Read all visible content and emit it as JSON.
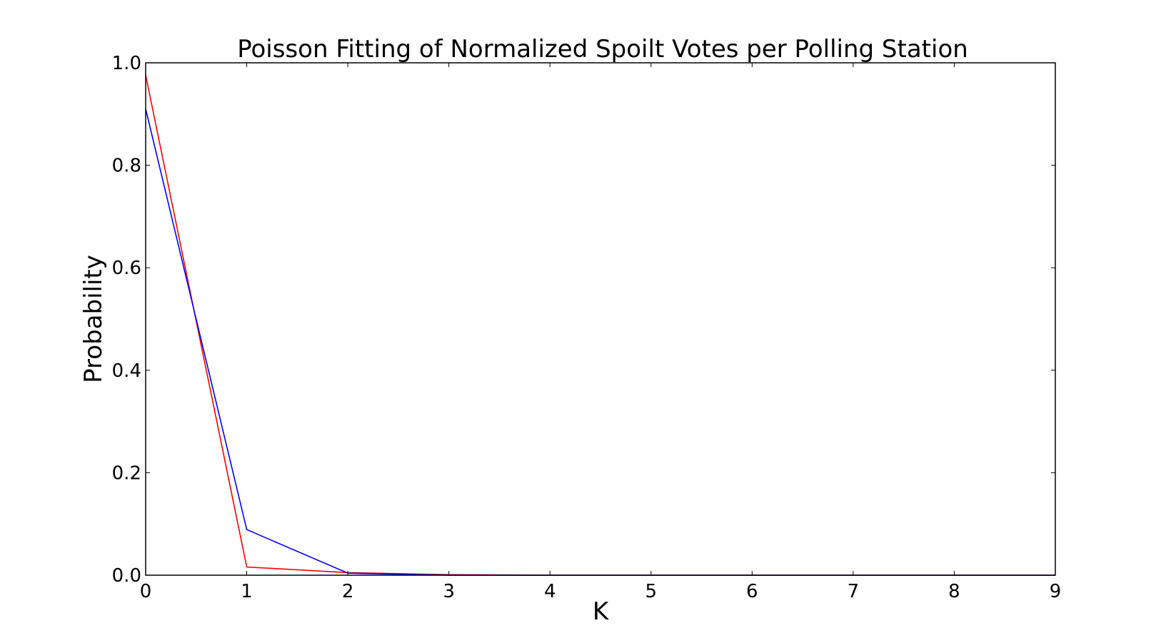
{
  "chart_data": {
    "type": "line",
    "title": "Poisson Fitting of Normalized Spoilt Votes per Polling Station",
    "xlabel": "K",
    "ylabel": "Probability",
    "xlim": [
      0,
      9
    ],
    "ylim": [
      0,
      1.0
    ],
    "xticks": [
      "0",
      "1",
      "2",
      "3",
      "4",
      "5",
      "6",
      "7",
      "8",
      "9"
    ],
    "yticks": [
      "0.0",
      "0.2",
      "0.4",
      "0.6",
      "0.8",
      "1.0"
    ],
    "grid": false,
    "legend": "none",
    "series": [
      {
        "color": "#ff0000",
        "x": [
          0,
          1,
          2,
          3,
          4,
          5,
          6,
          7,
          8,
          9
        ],
        "values": [
          0.976,
          0.016,
          0.005,
          0.001,
          0.0,
          0.0,
          0.0,
          0.0,
          0.0,
          0.0
        ]
      },
      {
        "color": "#0000ff",
        "x": [
          0,
          1,
          2,
          3,
          4,
          5,
          6,
          7,
          8,
          9
        ],
        "values": [
          0.91,
          0.089,
          0.004,
          0.0001,
          0.0,
          0.0,
          0.0,
          0.0,
          0.0,
          0.0
        ]
      }
    ]
  }
}
